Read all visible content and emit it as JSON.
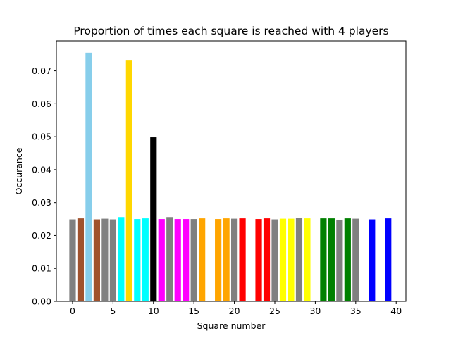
{
  "chart_data": {
    "type": "bar",
    "title": "Proportion of times each square is reached with 4 players",
    "xlabel": "Square number",
    "ylabel": "Occurance",
    "xlim": [
      -2,
      41.2
    ],
    "ylim": [
      0,
      0.0791
    ],
    "xticks": [
      0,
      5,
      10,
      15,
      20,
      25,
      30,
      35,
      40
    ],
    "xtick_labels": [
      "0",
      "5",
      "10",
      "15",
      "20",
      "25",
      "30",
      "35",
      "40"
    ],
    "yticks": [
      0.0,
      0.01,
      0.02,
      0.03,
      0.04,
      0.05,
      0.06,
      0.07
    ],
    "ytick_labels": [
      "0.00",
      "0.01",
      "0.02",
      "0.03",
      "0.04",
      "0.05",
      "0.06",
      "0.07"
    ],
    "grid": false,
    "legend": "none",
    "bars": [
      {
        "x": 0,
        "value": 0.0249,
        "color": "#808080"
      },
      {
        "x": 1,
        "value": 0.0252,
        "color": "#A0522D"
      },
      {
        "x": 2,
        "value": 0.0755,
        "color": "#87CEEB"
      },
      {
        "x": 3,
        "value": 0.0249,
        "color": "#A0522D"
      },
      {
        "x": 4,
        "value": 0.0251,
        "color": "#808080"
      },
      {
        "x": 5,
        "value": 0.0249,
        "color": "#808080"
      },
      {
        "x": 6,
        "value": 0.0256,
        "color": "#00FFFF"
      },
      {
        "x": 7,
        "value": 0.0733,
        "color": "#FFD700"
      },
      {
        "x": 8,
        "value": 0.025,
        "color": "#00FFFF"
      },
      {
        "x": 9,
        "value": 0.0252,
        "color": "#00FFFF"
      },
      {
        "x": 10,
        "value": 0.0498,
        "color": "#000000"
      },
      {
        "x": 11,
        "value": 0.025,
        "color": "#FF00FF"
      },
      {
        "x": 12,
        "value": 0.0256,
        "color": "#808080"
      },
      {
        "x": 13,
        "value": 0.025,
        "color": "#FF00FF"
      },
      {
        "x": 14,
        "value": 0.025,
        "color": "#FF00FF"
      },
      {
        "x": 15,
        "value": 0.025,
        "color": "#808080"
      },
      {
        "x": 16,
        "value": 0.0252,
        "color": "#FFA500"
      },
      {
        "x": 18,
        "value": 0.025,
        "color": "#FFA500"
      },
      {
        "x": 19,
        "value": 0.0252,
        "color": "#FFA500"
      },
      {
        "x": 20,
        "value": 0.0251,
        "color": "#808080"
      },
      {
        "x": 21,
        "value": 0.0252,
        "color": "#FF0000"
      },
      {
        "x": 23,
        "value": 0.025,
        "color": "#FF0000"
      },
      {
        "x": 24,
        "value": 0.0252,
        "color": "#FF0000"
      },
      {
        "x": 25,
        "value": 0.0249,
        "color": "#808080"
      },
      {
        "x": 26,
        "value": 0.0251,
        "color": "#FFFF00"
      },
      {
        "x": 27,
        "value": 0.0251,
        "color": "#FFFF00"
      },
      {
        "x": 28,
        "value": 0.0254,
        "color": "#808080"
      },
      {
        "x": 29,
        "value": 0.0252,
        "color": "#FFFF00"
      },
      {
        "x": 31,
        "value": 0.0252,
        "color": "#008000"
      },
      {
        "x": 32,
        "value": 0.0252,
        "color": "#008000"
      },
      {
        "x": 33,
        "value": 0.0248,
        "color": "#808080"
      },
      {
        "x": 34,
        "value": 0.0252,
        "color": "#008000"
      },
      {
        "x": 35,
        "value": 0.0251,
        "color": "#808080"
      },
      {
        "x": 37,
        "value": 0.0249,
        "color": "#0000FF"
      },
      {
        "x": 39,
        "value": 0.0252,
        "color": "#0000FF"
      }
    ]
  }
}
